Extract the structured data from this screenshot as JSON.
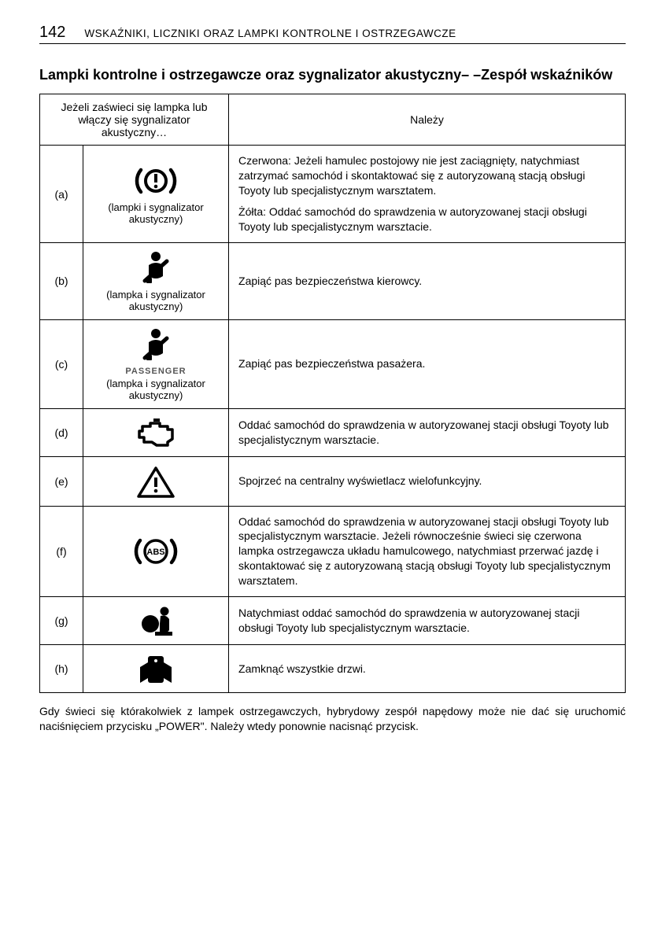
{
  "header": {
    "page_number": "142",
    "running_title": "WSKAŹNIKI, LICZNIKI ORAZ LAMPKI KONTROLNE I OSTRZEGAWCZE"
  },
  "section_title": "Lampki kontrolne i ostrzegawcze oraz sygnalizator akustyczny– –Zespół wskaźników",
  "table": {
    "header_left": "Jeżeli zaświeci się lampka lub włączy się sygnalizator akustyczny…",
    "header_right": "Należy",
    "rows": [
      {
        "id": "(a)",
        "icon": "brake-warning",
        "sub": "(lampki i sygnalizator akustyczny)",
        "desc_parts": [
          "Czerwona: Jeżeli hamulec postojowy nie jest zaciągnięty, natychmiast zatrzymać samochód i skontaktować się z autoryzowaną stacją obsługi Toyoty lub specjalistycznym warsztatem.",
          "Żółta: Oddać samochód do sprawdzenia w autoryzowanej stacji obsługi Toyoty lub specjalistycznym warsztacie."
        ]
      },
      {
        "id": "(b)",
        "icon": "seatbelt",
        "sub": "(lampka i sygnalizator akustyczny)",
        "desc_parts": [
          "Zapiąć pas bezpieczeństwa kierowcy."
        ]
      },
      {
        "id": "(c)",
        "icon": "seatbelt",
        "icon_extra_label": "PASSENGER",
        "sub": "(lampka i sygnalizator akustyczny)",
        "desc_parts": [
          "Zapiąć pas bezpieczeństwa pasażera."
        ]
      },
      {
        "id": "(d)",
        "icon": "engine",
        "desc_parts": [
          "Oddać samochód do sprawdzenia w autoryzowanej stacji obsługi Toyoty lub specjalistycznym warsztacie."
        ]
      },
      {
        "id": "(e)",
        "icon": "warning-triangle",
        "desc_parts": [
          "Spojrzeć na centralny wyświetlacz wielofunkcyjny."
        ]
      },
      {
        "id": "(f)",
        "icon": "abs",
        "desc_parts": [
          "Oddać samochód do sprawdzenia w autoryzowanej stacji obsługi Toyoty lub specjalistycznym warsztacie. Jeżeli równocześnie świeci się czerwona lampka ostrzegawcza układu hamulcowego, natychmiast przerwać jazdę i skontaktować się z autoryzowaną stacją obsługi Toyoty lub specjalistycznym warsztatem."
        ]
      },
      {
        "id": "(g)",
        "icon": "airbag",
        "desc_parts": [
          "Natychmiast oddać samochód do sprawdzenia w autoryzowanej stacji obsługi Toyoty lub specjalistycznym warsztacie."
        ]
      },
      {
        "id": "(h)",
        "icon": "door-ajar",
        "desc_parts": [
          "Zamknąć wszystkie drzwi."
        ]
      }
    ]
  },
  "footnote": "Gdy świeci się którakolwiek z lampek ostrzegawczych, hybrydowy zespół napędowy może nie dać się uruchomić naciśnięciem przycisku „POWER\". Należy wtedy ponownie nacisnąć przycisk.",
  "colors": {
    "text": "#000000",
    "border": "#000000",
    "bg": "#ffffff",
    "icon_gray": "#555555"
  }
}
